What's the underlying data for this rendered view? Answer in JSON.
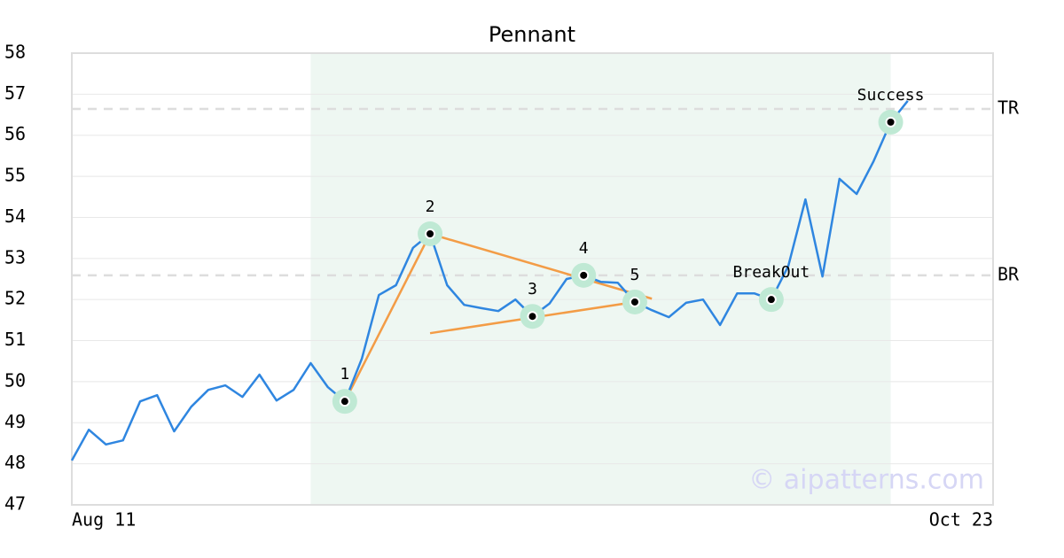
{
  "chart_data": {
    "type": "line",
    "title": "Pennant",
    "categories": [
      "Aug 11",
      null,
      null,
      null,
      null,
      null,
      null,
      null,
      null,
      null,
      null,
      null,
      null,
      null,
      null,
      null,
      null,
      null,
      null,
      null,
      null,
      null,
      null,
      null,
      null,
      null,
      null,
      null,
      null,
      null,
      null,
      null,
      null,
      null,
      null,
      null,
      null,
      null,
      null,
      null,
      null,
      null,
      null,
      null,
      null,
      null,
      null,
      null,
      null,
      null,
      null,
      null,
      null,
      null,
      "Oct 23"
    ],
    "values": [
      48.08,
      48.83,
      48.47,
      48.57,
      49.52,
      49.67,
      48.79,
      49.39,
      49.8,
      49.91,
      49.63,
      50.17,
      49.54,
      49.8,
      50.45,
      49.87,
      49.52,
      50.56,
      52.11,
      52.35,
      53.26,
      53.6,
      52.35,
      51.87,
      51.79,
      51.72,
      52.0,
      51.59,
      51.9,
      52.5,
      52.59,
      52.43,
      52.41,
      51.94,
      51.74,
      51.57,
      51.92,
      52.0,
      51.38,
      52.15,
      52.15,
      52.0,
      52.82,
      54.44,
      52.56,
      54.94,
      54.57,
      55.37,
      56.32,
      56.84,
      null,
      null,
      null,
      null,
      null
    ],
    "color": "#2f86e0",
    "ylim": [
      47,
      58
    ],
    "yticks": [
      47,
      48,
      49,
      50,
      51,
      52,
      53,
      54,
      55,
      56,
      57,
      58
    ],
    "grid": true,
    "highlight": [
      14,
      48
    ],
    "highlight_color": "#eef7f2",
    "reference_lines": [
      {
        "label": "TR",
        "value": 56.64
      },
      {
        "label": "BR",
        "value": 52.59
      }
    ],
    "trendlines": [
      {
        "x": [
          16,
          21
        ],
        "y": [
          49.52,
          53.6
        ]
      },
      {
        "x": [
          21,
          34
        ],
        "y": [
          53.6,
          52.02
        ]
      },
      {
        "x": [
          21,
          33
        ],
        "y": [
          51.18,
          51.94
        ]
      }
    ],
    "trendline_color": "#f39c46",
    "annotations": [
      {
        "label": "1",
        "index": 16
      },
      {
        "label": "2",
        "index": 21
      },
      {
        "label": "3",
        "index": 27
      },
      {
        "label": "4",
        "index": 30
      },
      {
        "label": "5",
        "index": 33
      },
      {
        "label": "BreakOut",
        "index": 41
      },
      {
        "label": "Success",
        "index": 48
      }
    ],
    "watermark": "© aipatterns.com"
  }
}
